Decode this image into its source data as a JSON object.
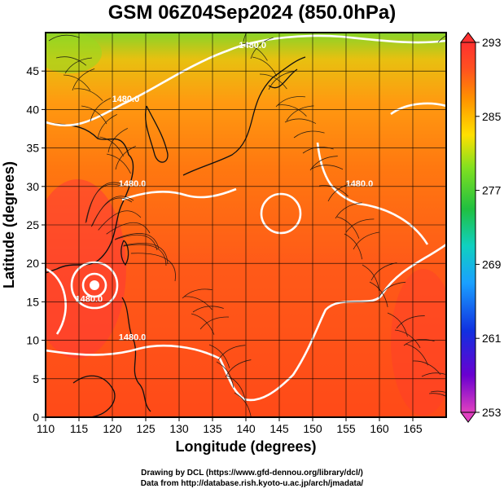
{
  "title": "GSM 06Z04Sep2024 (850.0hPa)",
  "map": {
    "x_label": "Longitude (degrees)",
    "y_label": "Latitude  (degrees)",
    "x_ticks": [
      110,
      115,
      120,
      125,
      130,
      135,
      140,
      145,
      150,
      155,
      160,
      165
    ],
    "y_ticks": [
      0,
      5,
      10,
      15,
      20,
      25,
      30,
      35,
      40,
      45
    ],
    "x_range": [
      110,
      170
    ],
    "y_range": [
      0,
      50
    ],
    "grid": true,
    "colorbar": {
      "ticks": [
        293,
        285,
        277,
        269,
        261,
        253
      ],
      "min": 253,
      "max": 293,
      "colors": [
        "#e040c0",
        "#6a00d0",
        "#1030e0",
        "#1aa0ff",
        "#10d0c0",
        "#20c040",
        "#80e020",
        "#ffe000",
        "#ff9000",
        "#ff5020",
        "#ff3030"
      ]
    },
    "contour_labels": [
      {
        "text": "1480.0",
        "lon": 141,
        "lat": 48
      },
      {
        "text": "1480.0",
        "lon": 122,
        "lat": 41
      },
      {
        "text": "1480.0",
        "lon": 123,
        "lat": 30
      },
      {
        "text": "1480.0",
        "lon": 157,
        "lat": 30
      },
      {
        "text": "1480.0",
        "lon": 116.5,
        "lat": 15
      },
      {
        "text": "1480.0",
        "lon": 123,
        "lat": 10
      }
    ],
    "typhoon_center": {
      "lon": 116.5,
      "lat": 19.5
    }
  },
  "credits": {
    "line1": "Drawing by DCL (https://www.gfd-dennou.org/library/dcl/)",
    "line2": "Data from http://database.rish.kyoto-u.ac.jp/arch/jmadata/"
  }
}
